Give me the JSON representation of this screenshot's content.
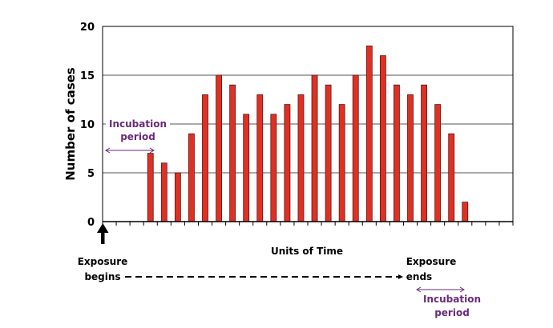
{
  "chart_data": {
    "type": "bar",
    "title": "",
    "xlabel": "Units of Time",
    "ylabel": "Number of cases",
    "ylim": [
      0,
      20
    ],
    "yticks": [
      0,
      5,
      10,
      15,
      20
    ],
    "grid": "horizontal",
    "num_time_units": 30,
    "first_bar_unit": 3,
    "values": [
      7,
      6,
      5,
      9,
      13,
      15,
      14,
      11,
      13,
      11,
      12,
      13,
      15,
      14,
      12,
      15,
      18,
      17,
      14,
      13,
      14,
      12,
      9,
      2
    ],
    "bar_color": "#e03024",
    "annotation_color": "#6a2a7a",
    "annotations": {
      "incubation_start": [
        "Incubation",
        "period"
      ],
      "exposure_begins": [
        "Exposure",
        "begins"
      ],
      "exposure_ends": [
        "Exposure",
        "ends"
      ],
      "incubation_end": [
        "Incubation",
        "period"
      ]
    }
  }
}
